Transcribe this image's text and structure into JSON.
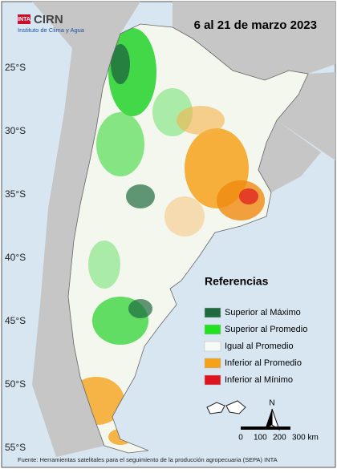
{
  "header": {
    "logo": "INTA",
    "brand": "CIRN",
    "institute": "Instituto de Clima y Agua",
    "title": "6 al 21 de marzo 2023"
  },
  "latitude_labels": [
    "25°S",
    "30°S",
    "35°S",
    "40°S",
    "45°S",
    "50°S",
    "55°S"
  ],
  "legend": {
    "title": "Referencias",
    "items": [
      {
        "label": "Superior al Máximo",
        "color": "#1f6b3f"
      },
      {
        "label": "Superior al Promedio",
        "color": "#22e022"
      },
      {
        "label": "Igual al Promedio",
        "color": "#f7f9f4"
      },
      {
        "label": "Inferior al Promedio",
        "color": "#f5a21a"
      },
      {
        "label": "Inferior al Mínimo",
        "color": "#e0141e"
      }
    ]
  },
  "compass": "N",
  "scale": {
    "labels": [
      "0",
      "100",
      "200",
      "300 km"
    ]
  },
  "footer": "Fuente: Herramientas satelitales para el seguimiento de la producción agropecuaria (SEPA) INTA"
}
